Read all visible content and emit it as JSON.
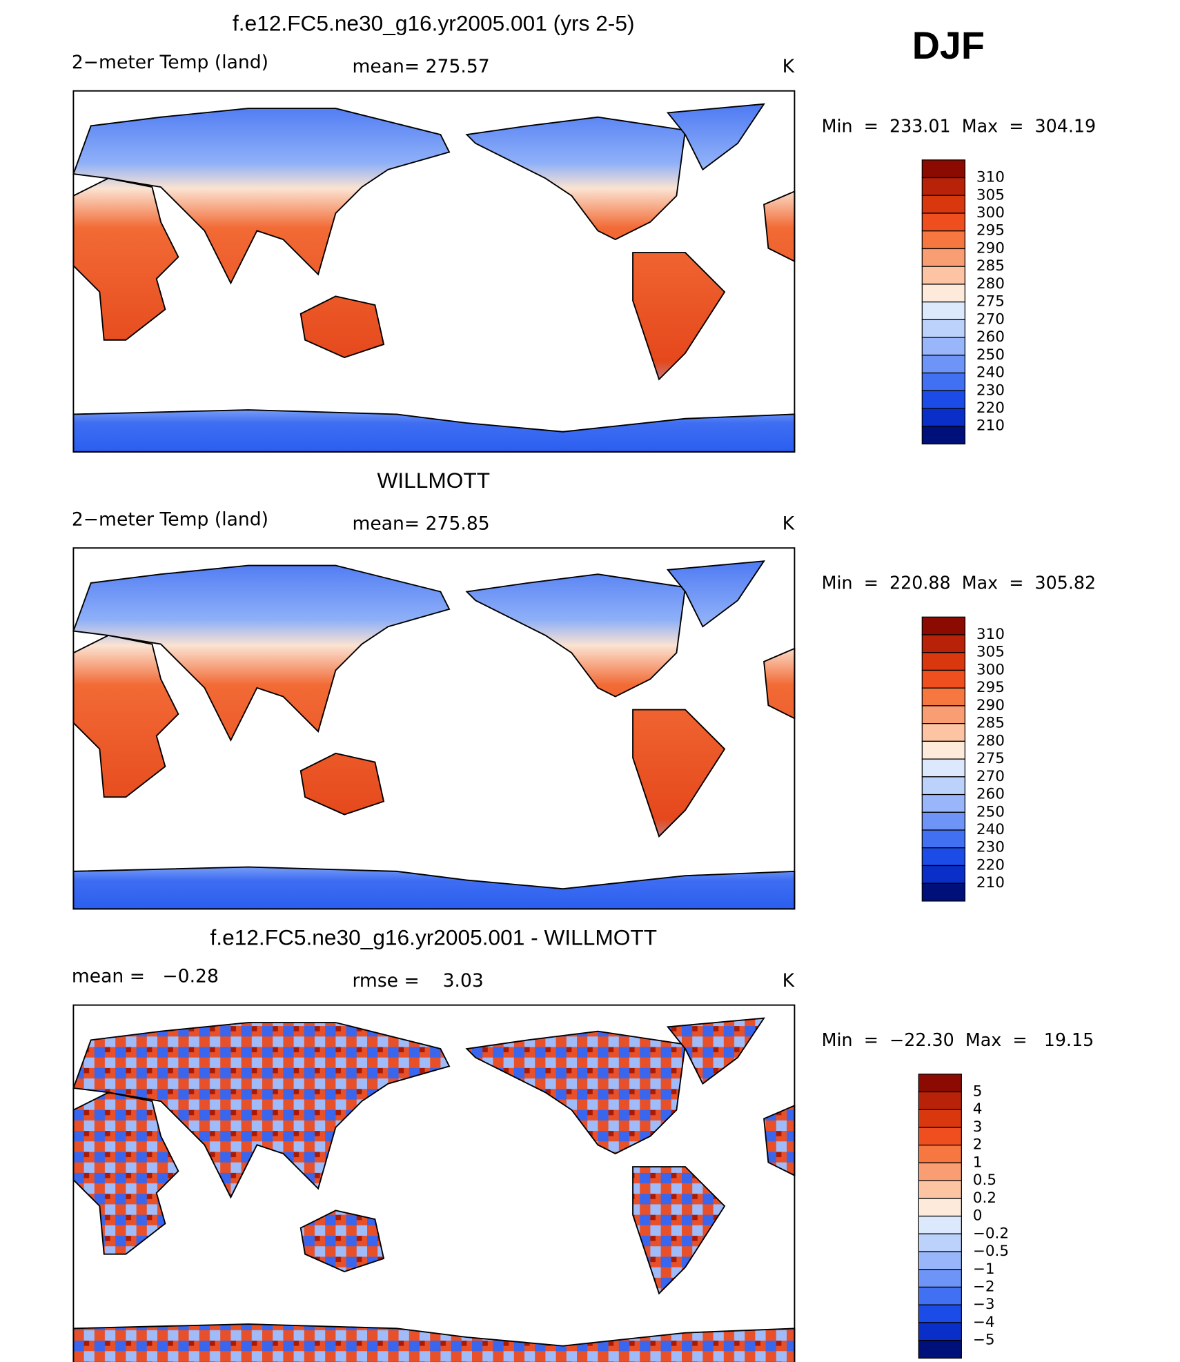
{
  "header": {
    "season": "DJF"
  },
  "panels": [
    {
      "title": "f.e12.FC5.ne30_g16.yr2005.001 (yrs 2-5)",
      "left_label": "2−meter Temp (land)",
      "center_label": "mean= 275.57",
      "units": "K",
      "range_label": "Min  =  233.01  Max  =  304.19",
      "colorbar": {
        "labels": [
          "310",
          "305",
          "300",
          "295",
          "290",
          "285",
          "280",
          "275",
          "270",
          "260",
          "250",
          "240",
          "230",
          "220",
          "210"
        ],
        "colors": [
          "#8b0a02",
          "#b82208",
          "#d9380f",
          "#ef4e1e",
          "#f6773f",
          "#f99e73",
          "#fcc4a2",
          "#feeadb",
          "#dce9fd",
          "#bcd2fb",
          "#98b6f9",
          "#6d94f6",
          "#4170f2",
          "#1c4ce8",
          "#0a2fc8",
          "#00107a"
        ]
      }
    },
    {
      "title": "WILLMOTT",
      "left_label": "2−meter Temp (land)",
      "center_label": "mean= 275.85",
      "units": "K",
      "range_label": "Min  =  220.88  Max  =  305.82",
      "colorbar": {
        "labels": [
          "310",
          "305",
          "300",
          "295",
          "290",
          "285",
          "280",
          "275",
          "270",
          "260",
          "250",
          "240",
          "230",
          "220",
          "210"
        ],
        "colors": [
          "#8b0a02",
          "#b82208",
          "#d9380f",
          "#ef4e1e",
          "#f6773f",
          "#f99e73",
          "#fcc4a2",
          "#feeadb",
          "#dce9fd",
          "#bcd2fb",
          "#98b6f9",
          "#6d94f6",
          "#4170f2",
          "#1c4ce8",
          "#0a2fc8",
          "#00107a"
        ]
      }
    },
    {
      "title": "f.e12.FC5.ne30_g16.yr2005.001 - WILLMOTT",
      "left_label": "mean =   −0.28",
      "center_label": "rmse =    3.03",
      "units": "K",
      "range_label": "Min  =  −22.30  Max  =   19.15",
      "colorbar": {
        "labels": [
          "5",
          "4",
          "3",
          "2",
          "1",
          "0.5",
          "0.2",
          "0",
          "−0.2",
          "−0.5",
          "−1",
          "−2",
          "−3",
          "−4",
          "−5"
        ],
        "colors": [
          "#8b0a02",
          "#b82208",
          "#d9380f",
          "#ef4e1e",
          "#f6773f",
          "#f99e73",
          "#fcc4a2",
          "#feeadb",
          "#dce9fd",
          "#bcd2fb",
          "#98b6f9",
          "#6d94f6",
          "#4170f2",
          "#1c4ce8",
          "#0a2fc8",
          "#00107a"
        ]
      }
    }
  ]
}
